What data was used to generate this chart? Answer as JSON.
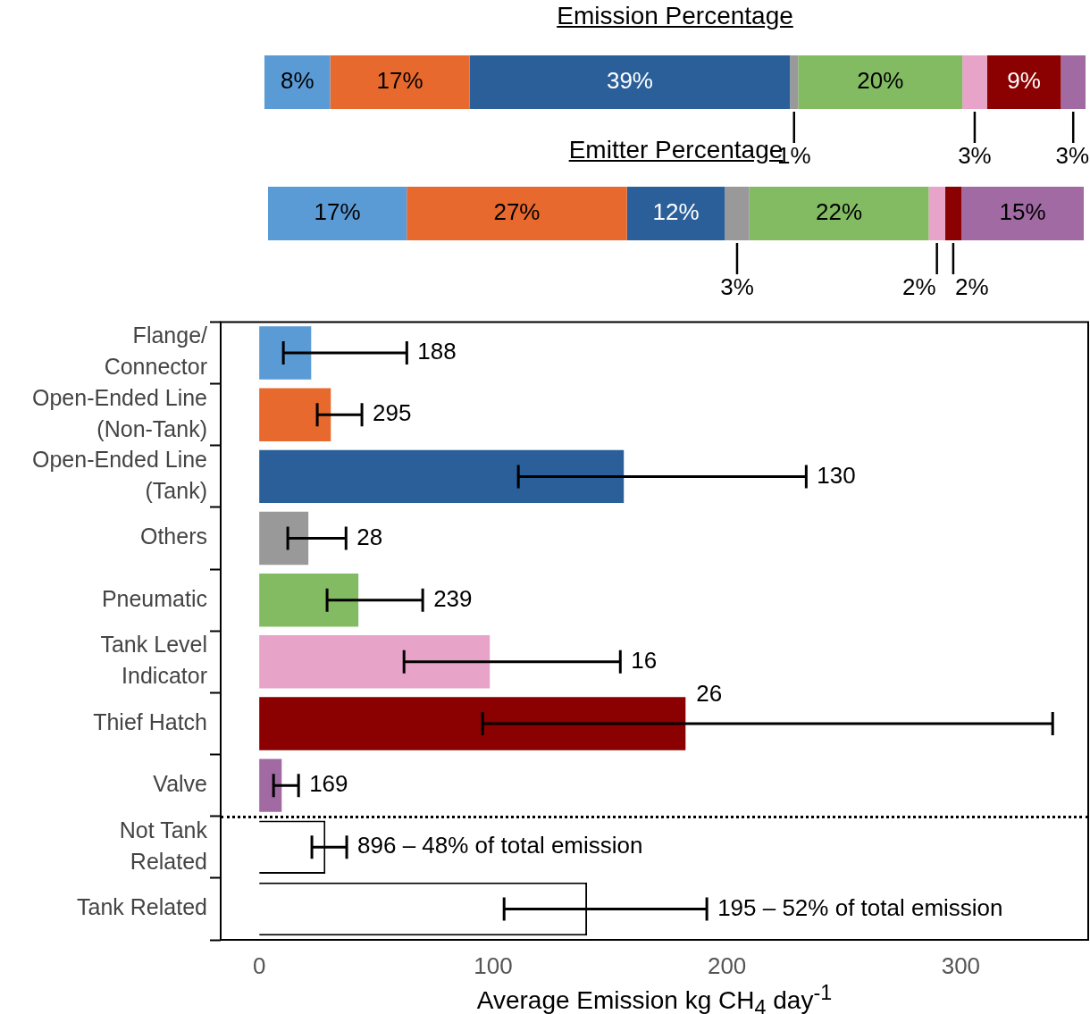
{
  "chart_data": [
    {
      "type": "bar",
      "title": "Emission Percentage",
      "orientation": "horizontal",
      "stacked": true,
      "categories": [
        null
      ],
      "tick_labels": false,
      "series": [
        {
          "color": "#5b9bd5",
          "values": [
            8
          ],
          "value_labels": [
            "8%"
          ]
        },
        {
          "color": "#e8692d",
          "values": [
            17
          ],
          "value_labels": [
            "17%"
          ]
        },
        {
          "color": "#2a5f9a",
          "values": [
            39
          ],
          "value_labels": [
            "39%"
          ]
        },
        {
          "color": "#999999",
          "values": [
            1
          ],
          "value_labels": [
            "1%"
          ]
        },
        {
          "color": "#83bb63",
          "values": [
            20
          ],
          "value_labels": [
            "20%"
          ]
        },
        {
          "color": "#e8a3c8",
          "values": [
            3
          ],
          "value_labels": [
            "3%"
          ]
        },
        {
          "color": "#8b0000",
          "values": [
            9
          ],
          "value_labels": [
            "9%"
          ]
        },
        {
          "color": "#a16aa3",
          "values": [
            3
          ],
          "value_labels": [
            "3%"
          ]
        }
      ]
    },
    {
      "type": "bar",
      "title": "Emitter Percentage",
      "orientation": "horizontal",
      "stacked": true,
      "categories": [
        null
      ],
      "tick_labels": false,
      "series": [
        {
          "color": "#5b9bd5",
          "values": [
            17
          ],
          "value_labels": [
            "17%"
          ]
        },
        {
          "color": "#e8692d",
          "values": [
            27
          ],
          "value_labels": [
            "27%"
          ]
        },
        {
          "color": "#2a5f9a",
          "values": [
            12
          ],
          "value_labels": [
            "12%"
          ]
        },
        {
          "color": "#999999",
          "values": [
            3
          ],
          "value_labels": [
            "3%"
          ]
        },
        {
          "color": "#83bb63",
          "values": [
            22
          ],
          "value_labels": [
            "22%"
          ]
        },
        {
          "color": "#e8a3c8",
          "values": [
            2
          ],
          "value_labels": [
            "2%"
          ]
        },
        {
          "color": "#8b0000",
          "values": [
            2
          ],
          "value_labels": [
            "2%"
          ]
        },
        {
          "color": "#a16aa3",
          "values": [
            15
          ],
          "value_labels": [
            "15%"
          ]
        }
      ]
    },
    {
      "type": "bar",
      "orientation": "horizontal",
      "xlabel": "Average Emission kg CH$_{4}$ day$^{-1}$",
      "xlim": [
        -16.5,
        354.5
      ],
      "xticks": [
        0,
        100,
        200,
        300
      ],
      "categories": [
        "Flange/ Connector",
        "Open-Ended Line (Non-Tank)",
        "Open-Ended Line (Tank)",
        "Others",
        "Pneumatic",
        "Tank Level Indicator",
        "Thief Hatch",
        "Valve",
        "Not Tank Related",
        "Tank Related"
      ],
      "values": [
        22.2,
        30.6,
        155.9,
        21,
        42.4,
        98.6,
        182.3,
        9.6,
        28.3,
        140.2
      ],
      "colors": [
        "#5b9bd5",
        "#e8692d",
        "#2a5f9a",
        "#999999",
        "#83bb63",
        "#e8a3c8",
        "#8b0000",
        "#a16aa3",
        "#ffffff",
        "#ffffff"
      ],
      "errors": [
        [
          10.3,
          63.1
        ],
        [
          24.8,
          43.9
        ],
        [
          110.8,
          233.9
        ],
        [
          12.2,
          37.1
        ],
        [
          29,
          69.9
        ],
        [
          61.9,
          154.4
        ],
        [
          95.5,
          339.3
        ],
        [
          6.1,
          16.8
        ],
        [
          22.5,
          37.4
        ],
        [
          104.7,
          191.4
        ]
      ],
      "annotations": [
        "188",
        "295",
        "130",
        "28",
        "239",
        "16",
        "26",
        "169",
        "896 – 48% of total emission",
        "195 – 52% of total emission"
      ]
    }
  ]
}
